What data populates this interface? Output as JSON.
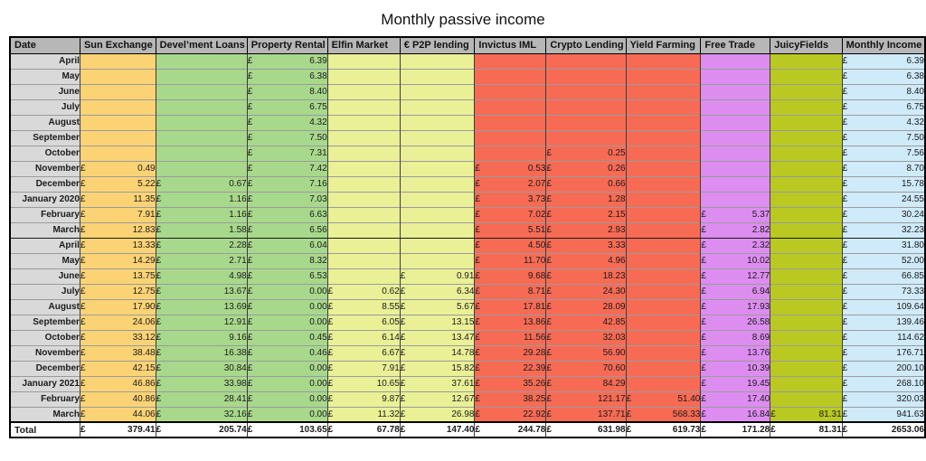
{
  "title": "Monthly passive income",
  "currency": "£",
  "colors": {
    "header_bg": "#b7b7b7",
    "date_bg": "#d9d9d9",
    "orange": "#fbd375",
    "green": "#a8d88b",
    "yellow_green": "#e9f096",
    "red": "#f76b55",
    "violet": "#dd8df0",
    "olive": "#b9c922",
    "light_blue": "#cfeaf8",
    "total_bg": "#ffffff"
  },
  "table": {
    "columns": [
      {
        "key": "date",
        "label": "Date",
        "bg": "#d9d9d9"
      },
      {
        "key": "sun_exchange",
        "label": "Sun Exchange",
        "bg": "#fbd375"
      },
      {
        "key": "develment_loans",
        "label": "Devel’ment Loans",
        "bg": "#a8d88b"
      },
      {
        "key": "property_rental",
        "label": "Property Rental",
        "bg": "#a8d88b"
      },
      {
        "key": "elfin_market",
        "label": "Elfin Market",
        "bg": "#e9f096"
      },
      {
        "key": "p2p_lending",
        "label": "€ P2P lending",
        "bg": "#e9f096"
      },
      {
        "key": "invictus_iml",
        "label": "Invictus IML",
        "bg": "#f76b55"
      },
      {
        "key": "crypto_lending",
        "label": "Crypto Lending",
        "bg": "#f76b55"
      },
      {
        "key": "yield_farming",
        "label": "Yield Farming",
        "bg": "#f76b55"
      },
      {
        "key": "free_trade",
        "label": "Free Trade",
        "bg": "#dd8df0"
      },
      {
        "key": "juicyfields",
        "label": "JuicyFields",
        "bg": "#b9c922"
      },
      {
        "key": "monthly_income",
        "label": "Monthly Income",
        "bg": "#cfeaf8"
      }
    ],
    "rows": [
      {
        "date": "April",
        "values": [
          "",
          "",
          "6.39",
          "",
          "",
          "",
          "",
          "",
          "",
          "",
          "6.39"
        ]
      },
      {
        "date": "May",
        "values": [
          "",
          "",
          "6.38",
          "",
          "",
          "",
          "",
          "",
          "",
          "",
          "6.38"
        ]
      },
      {
        "date": "June",
        "values": [
          "",
          "",
          "8.40",
          "",
          "",
          "",
          "",
          "",
          "",
          "",
          "8.40"
        ]
      },
      {
        "date": "July",
        "values": [
          "",
          "",
          "6.75",
          "",
          "",
          "",
          "",
          "",
          "",
          "",
          "6.75"
        ]
      },
      {
        "date": "August",
        "values": [
          "",
          "",
          "4.32",
          "",
          "",
          "",
          "",
          "",
          "",
          "",
          "4.32"
        ]
      },
      {
        "date": "September",
        "values": [
          "",
          "",
          "7.50",
          "",
          "",
          "",
          "",
          "",
          "",
          "",
          "7.50"
        ]
      },
      {
        "date": "October",
        "values": [
          "",
          "",
          "7.31",
          "",
          "",
          "",
          "0.25",
          "",
          "",
          "",
          "7.56"
        ]
      },
      {
        "date": "November",
        "values": [
          "0.49",
          "",
          "7.42",
          "",
          "",
          "0.53",
          "0.26",
          "",
          "",
          "",
          "8.70"
        ]
      },
      {
        "date": "December",
        "values": [
          "5.22",
          "0.67",
          "7.16",
          "",
          "",
          "2.07",
          "0.66",
          "",
          "",
          "",
          "15.78"
        ]
      },
      {
        "date": "January 2020",
        "values": [
          "11.35",
          "1.16",
          "7.03",
          "",
          "",
          "3.73",
          "1.28",
          "",
          "",
          "",
          "24.55"
        ]
      },
      {
        "date": "February",
        "values": [
          "7.91",
          "1.16",
          "6.63",
          "",
          "",
          "7.02",
          "2.15",
          "",
          "5.37",
          "",
          "30.24"
        ]
      },
      {
        "date": "March",
        "values": [
          "12.83",
          "1.58",
          "6.56",
          "",
          "",
          "5.51",
          "2.93",
          "",
          "2.82",
          "",
          "32.23"
        ],
        "year_end": true
      },
      {
        "date": "April",
        "values": [
          "13.33",
          "2.28",
          "6.04",
          "",
          "",
          "4.50",
          "3.33",
          "",
          "2.32",
          "",
          "31.80"
        ]
      },
      {
        "date": "May",
        "values": [
          "14.29",
          "2.71",
          "8.32",
          "",
          "",
          "11.70",
          "4.96",
          "",
          "10.02",
          "",
          "52.00"
        ]
      },
      {
        "date": "June",
        "values": [
          "13.75",
          "4.98",
          "6.53",
          "",
          "0.91",
          "9.68",
          "18.23",
          "",
          "12.77",
          "",
          "66.85"
        ]
      },
      {
        "date": "July",
        "values": [
          "12.75",
          "13.67",
          "0.00",
          "0.62",
          "6.34",
          "8.71",
          "24.30",
          "",
          "6.94",
          "",
          "73.33"
        ]
      },
      {
        "date": "August",
        "values": [
          "17.90",
          "13.69",
          "0.00",
          "8.55",
          "5.67",
          "17.81",
          "28.09",
          "",
          "17.93",
          "",
          "109.64"
        ]
      },
      {
        "date": "September",
        "values": [
          "24.06",
          "12.91",
          "0.00",
          "6.05",
          "13.15",
          "13.86",
          "42.85",
          "",
          "26.58",
          "",
          "139.46"
        ]
      },
      {
        "date": "October",
        "values": [
          "33.12",
          "9.16",
          "0.45",
          "6.14",
          "13.47",
          "11.56",
          "32.03",
          "",
          "8.69",
          "",
          "114.62"
        ]
      },
      {
        "date": "November",
        "values": [
          "38.48",
          "16.38",
          "0.46",
          "6.67",
          "14.78",
          "29.28",
          "56.90",
          "",
          "13.76",
          "",
          "176.71"
        ]
      },
      {
        "date": "December",
        "values": [
          "42.15",
          "30.84",
          "0.00",
          "7.91",
          "15.82",
          "22.39",
          "70.60",
          "",
          "10.39",
          "",
          "200.10"
        ]
      },
      {
        "date": "January 2021",
        "values": [
          "46.86",
          "33.98",
          "0.00",
          "10.65",
          "37.61",
          "35.26",
          "84.29",
          "",
          "19.45",
          "",
          "268.10"
        ]
      },
      {
        "date": "February",
        "values": [
          "40.86",
          "28.41",
          "0.00",
          "9.87",
          "12.67",
          "38.25",
          "121.17",
          "51.40",
          "17.40",
          "",
          "320.03"
        ]
      },
      {
        "date": "March",
        "values": [
          "44.06",
          "32.16",
          "0.00",
          "11.32",
          "26.98",
          "22.92",
          "137.71",
          "568.33",
          "16.84",
          "81.31",
          "941.63"
        ]
      }
    ],
    "total": {
      "label": "Total",
      "values": [
        "379.41",
        "205.74",
        "103.65",
        "67.78",
        "147.40",
        "244.78",
        "631.98",
        "619.73",
        "171.28",
        "81.31",
        "2653.06"
      ]
    }
  }
}
